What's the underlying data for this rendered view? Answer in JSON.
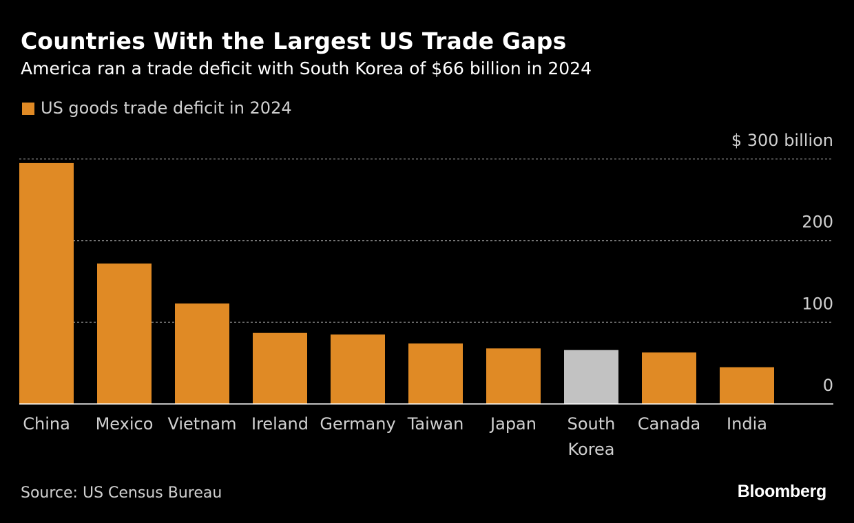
{
  "title": "Countries With the Largest US Trade Gaps",
  "subtitle": "America ran a trade deficit with South Korea of $66 billion in 2024",
  "legend": {
    "label": "US goods trade deficit in 2024"
  },
  "source": "Source: US Census Bureau",
  "brand": "Bloomberg",
  "colors": {
    "background": "#000000",
    "bar": "#e08a25",
    "highlight": "#c2c2c2",
    "grid": "#777777",
    "axis": "#ffffff",
    "label": "#d0d0d0"
  },
  "chart_data": {
    "type": "bar",
    "categories": [
      "China",
      "Mexico",
      "Vietnam",
      "Ireland",
      "Germany",
      "Taiwan",
      "Japan",
      "South Korea",
      "Canada",
      "India"
    ],
    "category_lines": [
      [
        "China"
      ],
      [
        "Mexico"
      ],
      [
        "Vietnam"
      ],
      [
        "Ireland"
      ],
      [
        "Germany"
      ],
      [
        "Taiwan"
      ],
      [
        "Japan"
      ],
      [
        "South",
        "Korea"
      ],
      [
        "Canada"
      ],
      [
        "India"
      ]
    ],
    "series": [
      {
        "name": "US goods trade deficit in 2024",
        "values": [
          295,
          172,
          123,
          87,
          85,
          74,
          68,
          66,
          63,
          45
        ]
      }
    ],
    "highlight_index": 7,
    "ylim": [
      0,
      300
    ],
    "yticks": [
      0,
      100,
      200,
      300
    ],
    "ytick_labels": [
      "0",
      "100",
      "200",
      "$ 300 billion"
    ],
    "grid": true,
    "legend_position": "top-left"
  }
}
